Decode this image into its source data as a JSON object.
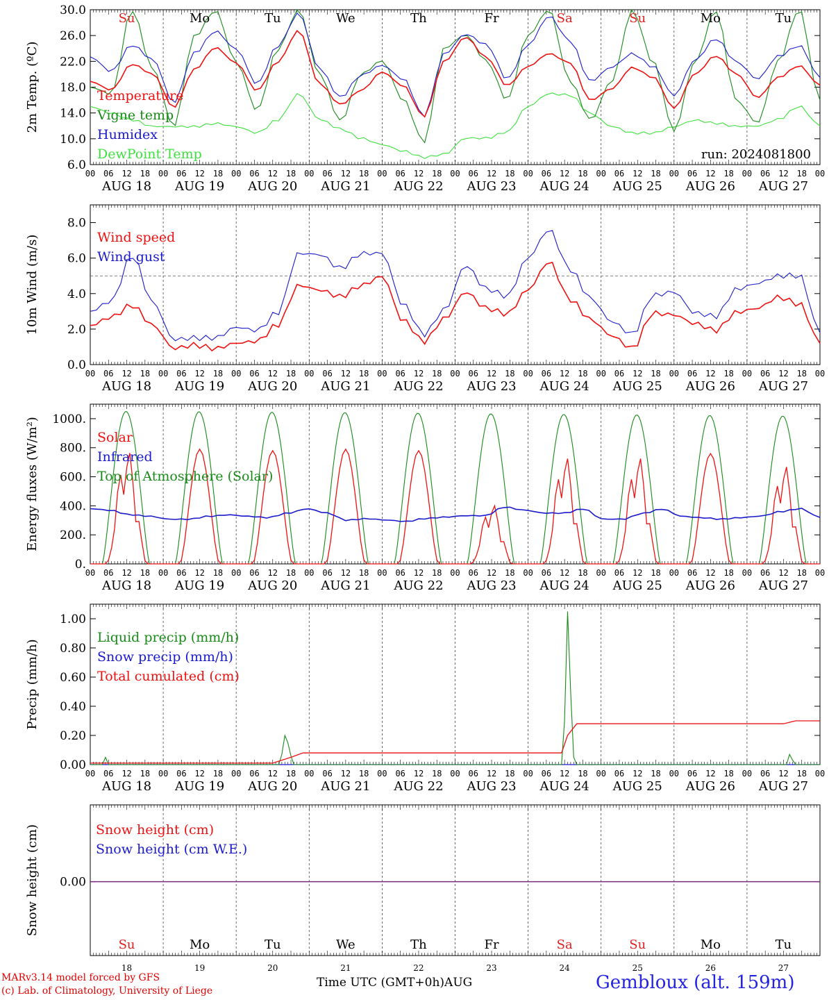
{
  "chart_data": [
    {
      "type": "line",
      "ylabel": "2m Temp. (ºC)",
      "ylim": [
        6.0,
        30.0
      ],
      "yticks": [
        "30.0",
        "26.0",
        "22.0",
        "18.0",
        "14.0",
        "10.0",
        "6.0"
      ],
      "annotation": "run: 2024081800",
      "day_abbrevs": [
        "Su",
        "Mo",
        "Tu",
        "We",
        "Th",
        "Fr",
        "Sa",
        "Su",
        "Mo",
        "Tu"
      ],
      "weekend_color": "#e02020",
      "x_hours": [
        0,
        6,
        12,
        18,
        24,
        30,
        36,
        42,
        48,
        54,
        60,
        66,
        72,
        78,
        84,
        90,
        96,
        102,
        108,
        114,
        120,
        126,
        132,
        138,
        144,
        150,
        156,
        162,
        168,
        174,
        180,
        186,
        192,
        198,
        204,
        210,
        216,
        222,
        228,
        234,
        240
      ],
      "series": [
        {
          "name": "Temperature",
          "color": "#ee1111",
          "values": [
            18.9,
            17.6,
            21.6,
            20.1,
            14.9,
            20.8,
            24.2,
            21.8,
            17.5,
            22.0,
            26.8,
            18.5,
            15.3,
            17.5,
            20.3,
            18.2,
            13.4,
            22.0,
            25.7,
            22.6,
            18.2,
            21.2,
            23.2,
            21.8,
            16.0,
            17.8,
            21.1,
            19.6,
            14.8,
            20.1,
            22.9,
            20.1,
            16.4,
            19.5,
            21.3,
            18.3
          ]
        },
        {
          "name": "Vigne temp",
          "color": "#188a18",
          "values": [
            18.0,
            17.0,
            30.0,
            21.0,
            12.0,
            26.0,
            30.0,
            22.0,
            14.5,
            24.0,
            30.0,
            20.0,
            12.7,
            20.0,
            22.0,
            16.0,
            9.4,
            24.0,
            26.0,
            22.0,
            16.0,
            26.0,
            30.0,
            19.0,
            13.0,
            19.0,
            30.0,
            22.0,
            11.3,
            22.0,
            30.0,
            16.0,
            12.5,
            22.0,
            30.0,
            16.0
          ]
        },
        {
          "name": "Humidex",
          "color": "#1a1acc",
          "values": [
            22.7,
            20.5,
            24.6,
            22.4,
            15.7,
            23.4,
            26.8,
            24.0,
            18.6,
            24.5,
            29.5,
            20.8,
            16.4,
            19.8,
            21.3,
            19.2,
            13.4,
            23.1,
            26.1,
            24.5,
            19.2,
            24.5,
            29.0,
            25.2,
            19.0,
            21.2,
            23.3,
            21.3,
            16.8,
            22.3,
            25.6,
            22.0,
            19.3,
            22.8,
            24.4,
            19.5
          ]
        },
        {
          "name": "DewPoint Temp",
          "color": "#3ee03e",
          "values": [
            15.0,
            14.0,
            13.0,
            12.0,
            12.0,
            12.0,
            12.5,
            12.0,
            11.0,
            13.0,
            17.0,
            13.0,
            11.5,
            10.0,
            9.0,
            8.0,
            7.0,
            7.5,
            10.0,
            10.0,
            11.0,
            15.0,
            17.0,
            16.8,
            14.0,
            12.0,
            11.0,
            11.0,
            12.0,
            13.0,
            12.5,
            12.0,
            12.0,
            13.0,
            15.0,
            12.0
          ]
        }
      ]
    },
    {
      "type": "line",
      "ylabel": "10m Wind (m/s)",
      "ylim": [
        0.0,
        9.0
      ],
      "yticks": [
        "8.0",
        "6.0",
        "4.0",
        "2.0",
        "0.0"
      ],
      "reference_line": 5.0,
      "series": [
        {
          "name": "Wind speed",
          "color": "#ee1111",
          "values": [
            2.2,
            2.7,
            3.4,
            2.3,
            1.0,
            1.2,
            1.0,
            1.3,
            1.4,
            2.3,
            4.5,
            4.2,
            3.8,
            4.4,
            4.9,
            2.4,
            1.2,
            2.5,
            4.0,
            3.1,
            2.8,
            4.2,
            5.8,
            3.7,
            2.6,
            1.7,
            1.0,
            3.0,
            2.9,
            2.4,
            2.0,
            3.0,
            3.2,
            3.8,
            3.4,
            1.2
          ]
        },
        {
          "name": "Wind gust",
          "color": "#1a1acc",
          "values": [
            3.0,
            3.6,
            6.2,
            3.6,
            1.5,
            1.6,
            1.6,
            2.2,
            2.0,
            3.0,
            6.3,
            6.2,
            5.4,
            6.2,
            6.2,
            3.3,
            1.6,
            3.0,
            5.5,
            4.2,
            3.8,
            6.0,
            7.6,
            5.4,
            3.8,
            2.5,
            1.8,
            4.0,
            4.2,
            3.0,
            2.8,
            4.3,
            4.6,
            5.0,
            5.0,
            1.8
          ]
        }
      ]
    },
    {
      "type": "line",
      "ylabel": "Energy fluxes (W/m²)",
      "ylim": [
        0,
        1100
      ],
      "yticks": [
        "1000.",
        "800.",
        "600.",
        "400.",
        "200.",
        "0."
      ],
      "series": [
        {
          "name": "Solar",
          "color": "#ee1111",
          "peaks": [
            800,
            790,
            780,
            790,
            780,
            420,
            760,
            760,
            760,
            700
          ]
        },
        {
          "name": "Infrared",
          "color": "#1a1acc",
          "values": [
            380,
            370,
            340,
            330,
            310,
            310,
            330,
            340,
            330,
            320,
            350,
            380,
            350,
            300,
            310,
            300,
            290,
            310,
            320,
            330,
            330,
            390,
            370,
            350,
            350,
            380,
            310,
            310,
            350,
            380,
            330,
            320,
            310,
            320,
            330,
            360,
            380,
            320
          ]
        },
        {
          "name": "Top of Atmosphere (Solar)",
          "color": "#188a18",
          "peaks": [
            1050,
            1048,
            1045,
            1042,
            1038,
            1034,
            1030,
            1026,
            1022,
            1018
          ]
        }
      ]
    },
    {
      "type": "line",
      "ylabel": "Precip (mm/h)",
      "ylim": [
        0.0,
        1.1
      ],
      "yticks": [
        "1.00",
        "0.80",
        "0.60",
        "0.40",
        "0.20",
        "0.00"
      ],
      "series": [
        {
          "name": "Liquid precip (mm/h)",
          "color": "#188a18",
          "events": [
            [
              5,
              0.05
            ],
            [
              63,
              0.07
            ],
            [
              64,
              0.2
            ],
            [
              65,
              0.15
            ],
            [
              66,
              0.06
            ],
            [
              156,
              0.3
            ],
            [
              157,
              1.05
            ],
            [
              158,
              0.5
            ],
            [
              159,
              0.05
            ],
            [
              230,
              0.07
            ],
            [
              231,
              0.03
            ]
          ]
        },
        {
          "name": "Snow precip (mm/h)",
          "color": "#1a1acc",
          "values": [
            0
          ]
        },
        {
          "name": "Total cumulated (cm)",
          "color": "#ee1111",
          "steps": [
            [
              0,
              0.01
            ],
            [
              60,
              0.01
            ],
            [
              66,
              0.05
            ],
            [
              70,
              0.08
            ],
            [
              155,
              0.08
            ],
            [
              157,
              0.2
            ],
            [
              160,
              0.28
            ],
            [
              228,
              0.28
            ],
            [
              232,
              0.3
            ],
            [
              240,
              0.3
            ]
          ]
        }
      ]
    },
    {
      "type": "line",
      "ylabel": "Snow height (cm)",
      "yticks": [
        "0.00"
      ],
      "series": [
        {
          "name": "Snow height (cm)",
          "color": "#ee1111",
          "values": [
            0
          ]
        },
        {
          "name": "Snow height (cm W.E.)",
          "color": "#1a1acc",
          "values": [
            0
          ]
        }
      ],
      "combined_color": "#7a2a7a"
    }
  ],
  "x_axis": {
    "hour_labels": [
      "00",
      "06",
      "12",
      "18"
    ],
    "end_label": "00",
    "date_labels": [
      "AUG 18",
      "AUG 19",
      "AUG 20",
      "AUG 21",
      "AUG 22",
      "AUG 23",
      "AUG 24",
      "AUG 25",
      "AUG 26",
      "AUG 27"
    ],
    "day_numbers": [
      "18",
      "19",
      "20",
      "21",
      "22",
      "23",
      "24",
      "25",
      "26",
      "27"
    ],
    "title": "Time UTC (GMT+0h)",
    "month": "AUG"
  },
  "footer": {
    "credit1": "MARv3.14 model forced by GFS",
    "credit2": "(c) Lab. of Climatology, University of Liege",
    "station": "Gembloux (alt. 159m)"
  }
}
